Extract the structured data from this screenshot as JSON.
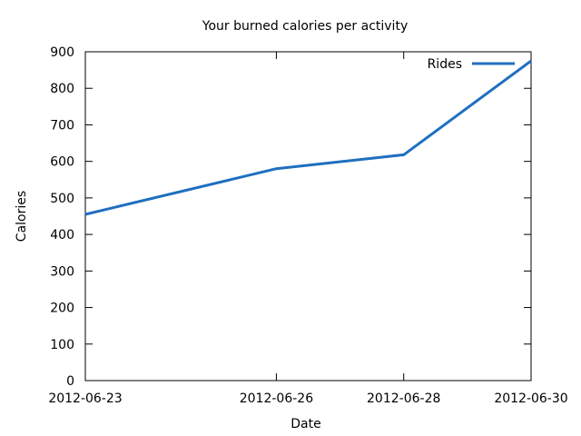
{
  "chart_data": {
    "type": "line",
    "title": "Your burned calories per activity",
    "xlabel": "Date",
    "ylabel": "Calories",
    "x_ticks": [
      "2012-06-23",
      "2012-06-26",
      "2012-06-28",
      "2012-06-30"
    ],
    "y_ticks": [
      "0",
      "100",
      "200",
      "300",
      "400",
      "500",
      "600",
      "700",
      "800",
      "900"
    ],
    "ylim": [
      0,
      900
    ],
    "xlim": [
      "2012-06-23",
      "2012-06-30"
    ],
    "grid": false,
    "legend_position": "top-right",
    "series": [
      {
        "name": "Rides",
        "color": "#1f6fbf",
        "points": [
          {
            "x": "2012-06-23",
            "y": 455
          },
          {
            "x": "2012-06-26",
            "y": 580
          },
          {
            "x": "2012-06-28",
            "y": 618
          },
          {
            "x": "2012-06-30",
            "y": 875
          }
        ]
      }
    ]
  }
}
